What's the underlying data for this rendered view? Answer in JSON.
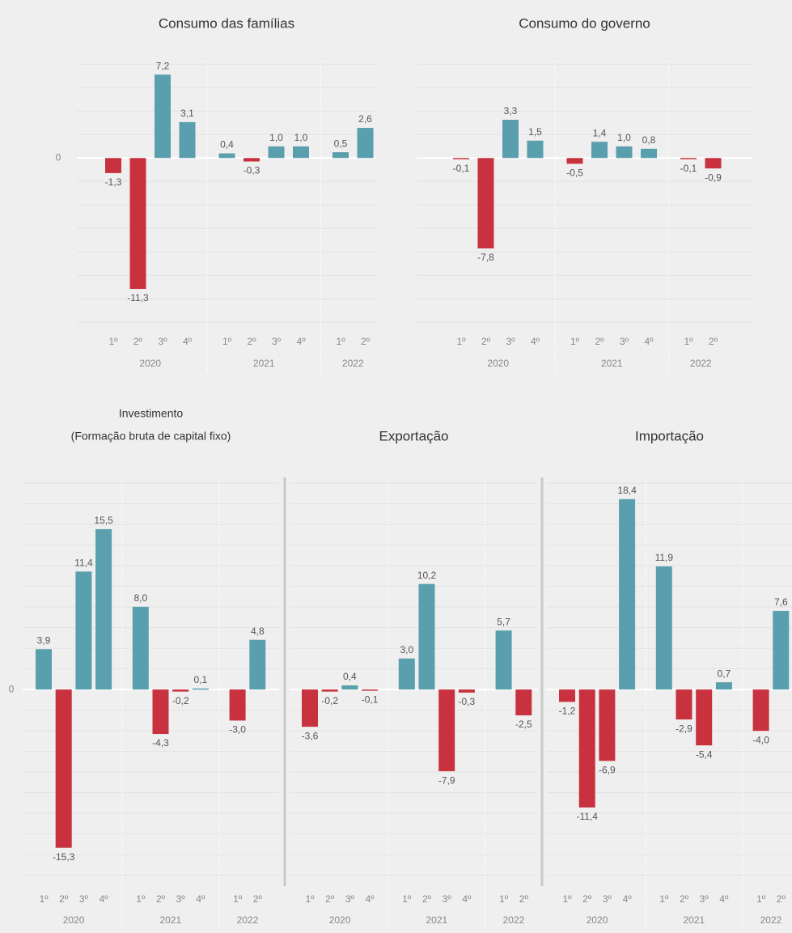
{
  "chart_data": [
    {
      "type": "bar",
      "title": "Consumo das famílias",
      "categories": [
        "1º",
        "2º",
        "3º",
        "4º",
        "1º",
        "2º",
        "3º",
        "4º",
        "1º",
        "2º"
      ],
      "years": [
        "2020",
        "2021",
        "2022"
      ],
      "values": [
        -1.3,
        -11.3,
        7.2,
        3.1,
        0.4,
        -0.3,
        1.0,
        1.0,
        0.5,
        2.6
      ],
      "value_labels": [
        "-1,3",
        "-11,3",
        "7,2",
        "3,1",
        "0,4",
        "-0,3",
        "1,0",
        "1,0",
        "0,5",
        "2,6"
      ],
      "positive_color": "#5a9fae",
      "negative_color": "#c8323f",
      "ylim": [
        -14.3,
        8.4
      ],
      "yticks": [
        0
      ]
    },
    {
      "type": "bar",
      "title": "Consumo do governo",
      "categories": [
        "1º",
        "2º",
        "3º",
        "4º",
        "1º",
        "2º",
        "3º",
        "4º",
        "1º",
        "2º"
      ],
      "years": [
        "2020",
        "2021",
        "2022"
      ],
      "values": [
        -0.1,
        -7.8,
        3.3,
        1.5,
        -0.5,
        1.4,
        1.0,
        0.8,
        -0.1,
        -0.9
      ],
      "value_labels": [
        "-0,1",
        "-7,8",
        "3,3",
        "1,5",
        "-0,5",
        "1,4",
        "1,0",
        "0,8",
        "-0,1",
        "-0,9"
      ],
      "positive_color": "#5a9fae",
      "negative_color": "#c8323f",
      "ylim": [
        -14.3,
        8.4
      ]
    },
    {
      "type": "bar",
      "title": "Investimento",
      "subtitle": "(Formação bruta de capital fixo)",
      "categories": [
        "1º",
        "2º",
        "3º",
        "4º",
        "1º",
        "2º",
        "3º",
        "4º",
        "1º",
        "2º"
      ],
      "years": [
        "2020",
        "2021",
        "2022"
      ],
      "values": [
        3.9,
        -15.3,
        11.4,
        15.5,
        8.0,
        -4.3,
        -0.2,
        0.1,
        -3.0,
        4.8
      ],
      "value_labels": [
        "3,9",
        "-15,3",
        "11,4",
        "15,5",
        "8,0",
        "-4,3",
        "-0,2",
        "0,1",
        "-3,0",
        "4,8"
      ],
      "positive_color": "#5a9fae",
      "negative_color": "#c8323f",
      "ylim": [
        -19,
        20.5
      ],
      "yticks": [
        0
      ]
    },
    {
      "type": "bar",
      "title": "Exportação",
      "categories": [
        "1º",
        "2º",
        "3º",
        "4º",
        "1º",
        "2º",
        "3º",
        "4º",
        "1º",
        "2º"
      ],
      "years": [
        "2020",
        "2021",
        "2022"
      ],
      "values": [
        -3.6,
        -0.2,
        0.4,
        -0.1,
        3.0,
        10.2,
        -7.9,
        -0.3,
        5.7,
        -2.5
      ],
      "value_labels": [
        "-3,6",
        "-0,2",
        "0,4",
        "-0,1",
        "3,0",
        "10,2",
        "-7,9",
        "-0,3",
        "5,7",
        "-2,5"
      ],
      "positive_color": "#5a9fae",
      "negative_color": "#c8323f",
      "ylim": [
        -19,
        20.5
      ]
    },
    {
      "type": "bar",
      "title": "Importação",
      "categories": [
        "1º",
        "2º",
        "3º",
        "4º",
        "1º",
        "2º",
        "3º",
        "4º",
        "1º",
        "2º"
      ],
      "years": [
        "2020",
        "2021",
        "2022"
      ],
      "values": [
        -1.2,
        -11.4,
        -6.9,
        18.4,
        11.9,
        -2.9,
        -5.4,
        0.7,
        -4.0,
        7.6
      ],
      "value_labels": [
        "-1,2",
        "-11,4",
        "-6,9",
        "18,4",
        "11,9",
        "-2,9",
        "-5,4",
        "0,7",
        "-4,0",
        "7,6"
      ],
      "positive_color": "#5a9fae",
      "negative_color": "#c8323f",
      "ylim": [
        -19,
        20.5
      ]
    }
  ]
}
